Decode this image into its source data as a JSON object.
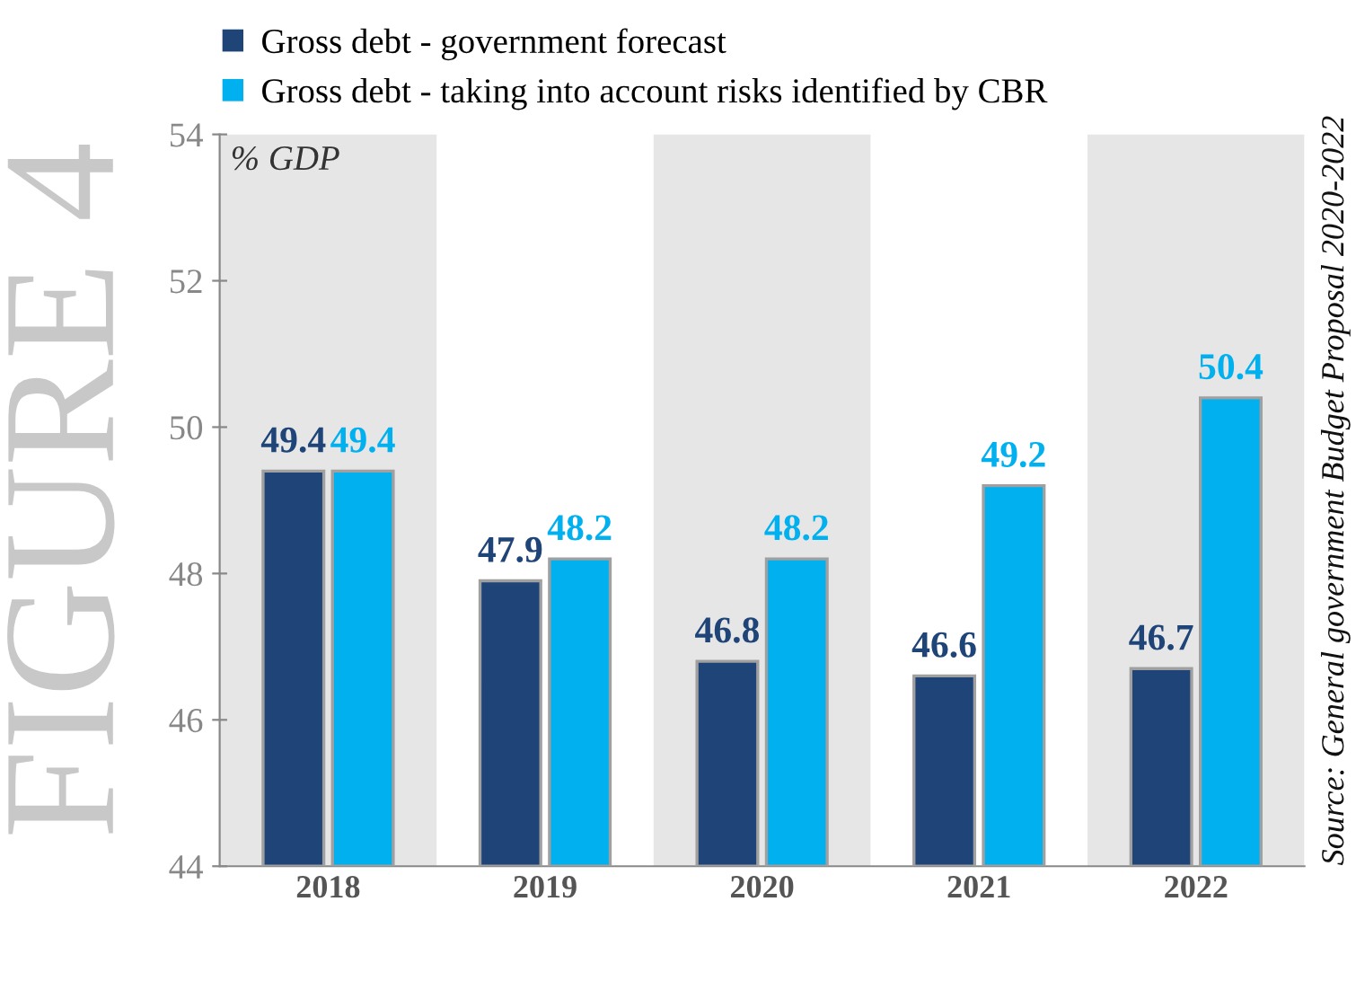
{
  "chart_data": {
    "type": "bar",
    "categories": [
      "2018",
      "2019",
      "2020",
      "2021",
      "2022"
    ],
    "series": [
      {
        "name": "Gross debt - government forecast",
        "color": "#1f4478",
        "values": [
          49.4,
          47.9,
          46.8,
          46.6,
          46.7
        ]
      },
      {
        "name": "Gross debt - taking into account risks identified by CBR",
        "color": "#00b0ef",
        "values": [
          49.4,
          48.2,
          48.2,
          49.2,
          50.4
        ]
      }
    ],
    "ylim": [
      44,
      54
    ],
    "yticks": [
      44,
      46,
      48,
      50,
      52,
      54
    ],
    "ylabel": "% GDP",
    "grid": false,
    "legend": "top",
    "data_labels": true,
    "bands": [
      {
        "axis": "x",
        "from": "2018",
        "to": "2018",
        "color": "#e6e6e6"
      },
      {
        "axis": "x",
        "from": "2020",
        "to": "2020",
        "color": "#e6e6e6"
      },
      {
        "axis": "x",
        "from": "2022",
        "to": "2022",
        "color": "#e6e6e6"
      }
    ],
    "annotations": [
      "FIGURE 4",
      "Source: General government Budget Proposal 2020-2022"
    ]
  }
}
